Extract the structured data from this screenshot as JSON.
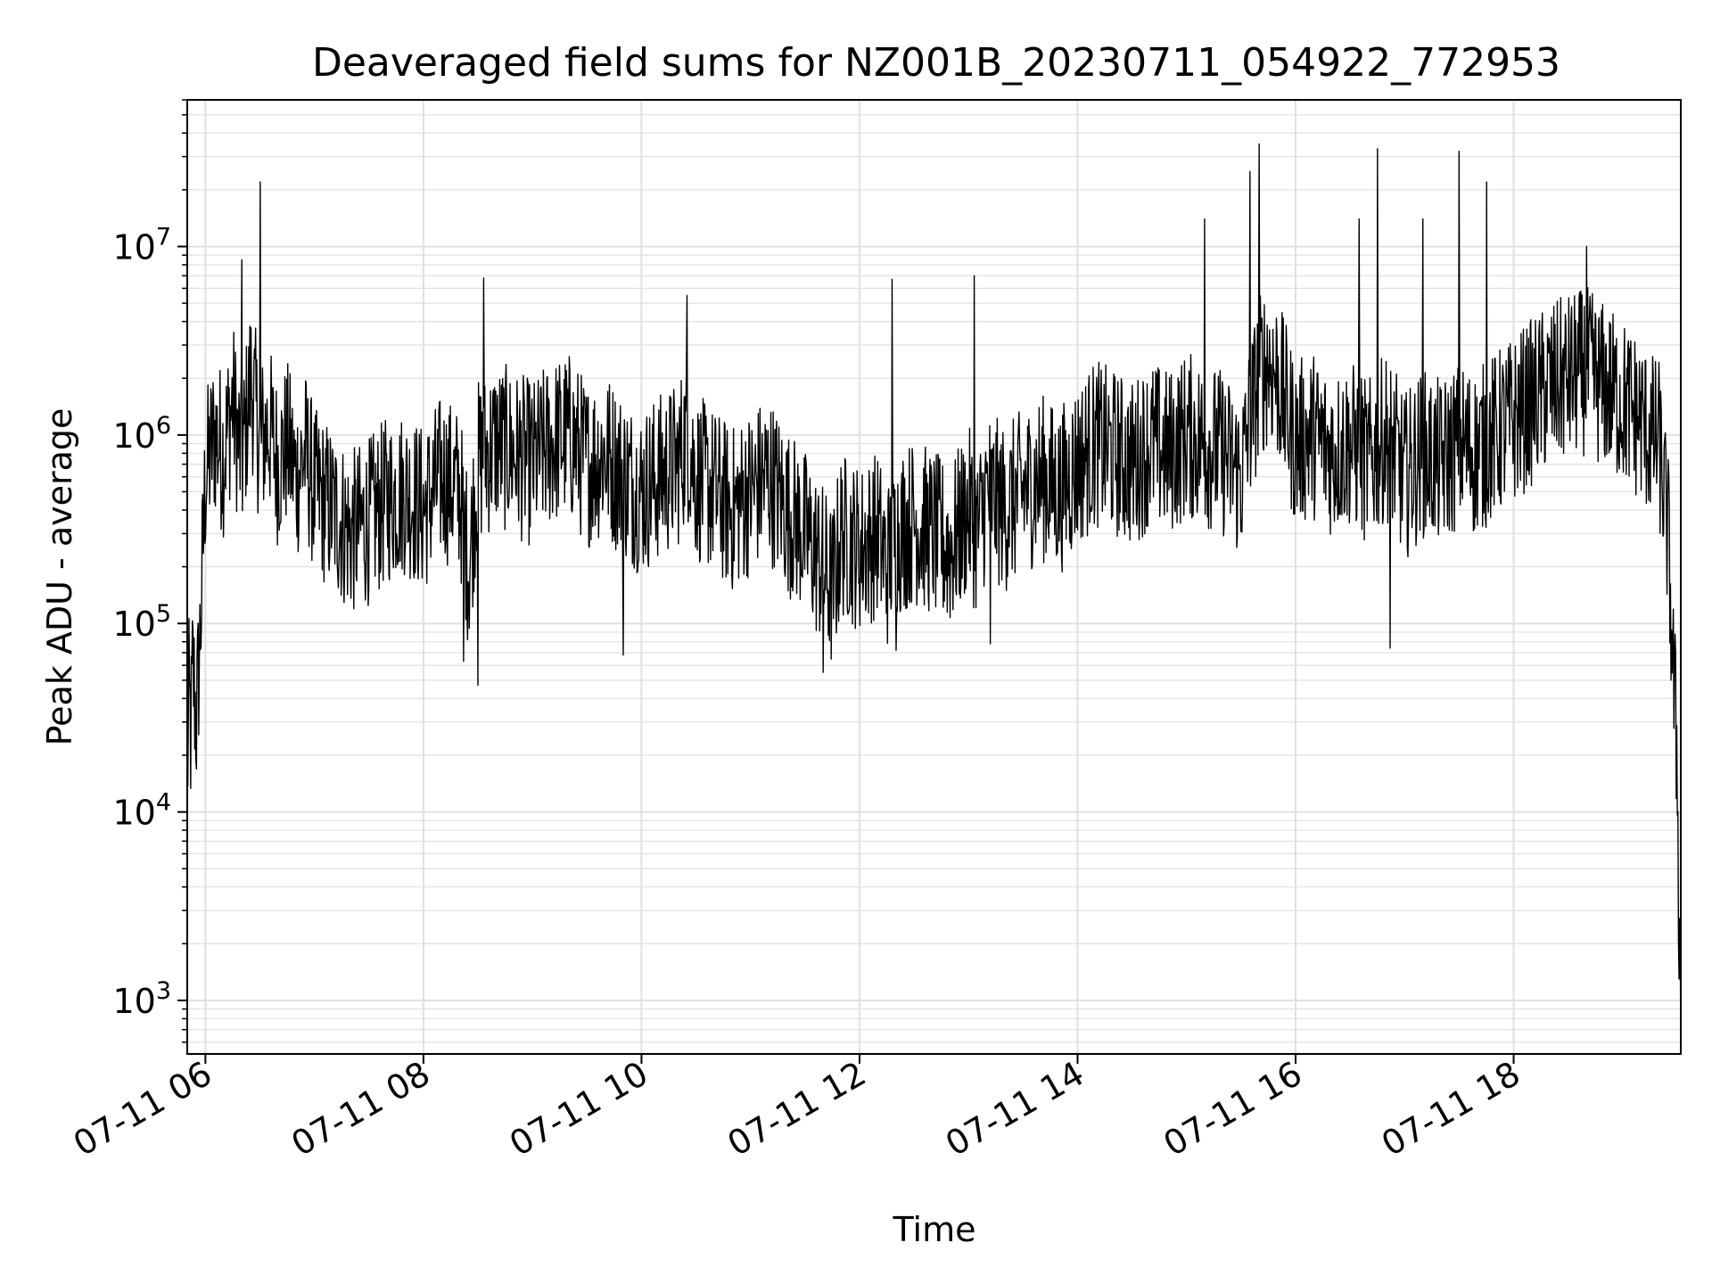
{
  "chart_data": {
    "type": "line",
    "title": "Deaveraged field sums for NZ001B_20230711_054922_772953",
    "xlabel": "Time",
    "ylabel": "Peak ADU - average",
    "x_scale": "time",
    "y_scale": "log",
    "xlim": [
      "2023-07-11 05:50",
      "2023-07-11 19:32"
    ],
    "ylim": [
      520,
      60000000
    ],
    "grid": true,
    "line_color": "#000000",
    "grid_color": "#e0e0e0",
    "x_ticks": [
      {
        "value": "2023-07-11 06:00",
        "label": "07-11 06"
      },
      {
        "value": "2023-07-11 08:00",
        "label": "07-11 08"
      },
      {
        "value": "2023-07-11 10:00",
        "label": "07-11 10"
      },
      {
        "value": "2023-07-11 12:00",
        "label": "07-11 12"
      },
      {
        "value": "2023-07-11 14:00",
        "label": "07-11 14"
      },
      {
        "value": "2023-07-11 16:00",
        "label": "07-11 16"
      },
      {
        "value": "2023-07-11 18:00",
        "label": "07-11 18"
      }
    ],
    "y_ticks": [
      {
        "value": 1000,
        "base": "10",
        "exp": "3"
      },
      {
        "value": 10000,
        "base": "10",
        "exp": "4"
      },
      {
        "value": 100000,
        "base": "10",
        "exp": "5"
      },
      {
        "value": 1000000,
        "base": "10",
        "exp": "6"
      },
      {
        "value": 10000000,
        "base": "10",
        "exp": "7"
      }
    ],
    "series": [
      {
        "x": [
          "2023-07-11 05:50",
          "2023-07-11 05:51",
          "2023-07-11 05:52",
          "2023-07-11 05:53",
          "2023-07-11 05:55",
          "2023-07-11 05:57",
          "2023-07-11 06:00",
          "2023-07-11 06:05",
          "2023-07-11 06:10",
          "2023-07-11 06:15",
          "2023-07-11 06:20",
          "2023-07-11 06:25",
          "2023-07-11 06:30",
          "2023-07-11 06:35",
          "2023-07-11 06:40",
          "2023-07-11 06:45",
          "2023-07-11 06:50",
          "2023-07-11 06:55",
          "2023-07-11 07:00",
          "2023-07-11 07:10",
          "2023-07-11 07:20",
          "2023-07-11 07:30",
          "2023-07-11 07:40",
          "2023-07-11 07:50",
          "2023-07-11 08:00",
          "2023-07-11 08:10",
          "2023-07-11 08:20",
          "2023-07-11 08:25",
          "2023-07-11 08:30",
          "2023-07-11 08:35",
          "2023-07-11 08:40",
          "2023-07-11 08:50",
          "2023-07-11 09:00",
          "2023-07-11 09:10",
          "2023-07-11 09:20",
          "2023-07-11 09:30",
          "2023-07-11 09:40",
          "2023-07-11 09:50",
          "2023-07-11 10:00",
          "2023-07-11 10:10",
          "2023-07-11 10:20",
          "2023-07-11 10:25",
          "2023-07-11 10:30",
          "2023-07-11 10:40",
          "2023-07-11 10:50",
          "2023-07-11 11:00",
          "2023-07-11 11:10",
          "2023-07-11 11:20",
          "2023-07-11 11:30",
          "2023-07-11 11:40",
          "2023-07-11 11:45",
          "2023-07-11 11:50",
          "2023-07-11 12:00",
          "2023-07-11 12:10",
          "2023-07-11 12:15",
          "2023-07-11 12:20",
          "2023-07-11 12:30",
          "2023-07-11 12:40",
          "2023-07-11 12:50",
          "2023-07-11 13:00",
          "2023-07-11 13:05",
          "2023-07-11 13:10",
          "2023-07-11 13:20",
          "2023-07-11 13:30",
          "2023-07-11 13:40",
          "2023-07-11 13:50",
          "2023-07-11 14:00",
          "2023-07-11 14:10",
          "2023-07-11 14:20",
          "2023-07-11 14:30",
          "2023-07-11 14:40",
          "2023-07-11 14:50",
          "2023-07-11 15:00",
          "2023-07-11 15:10",
          "2023-07-11 15:20",
          "2023-07-11 15:30",
          "2023-07-11 15:35",
          "2023-07-11 15:40",
          "2023-07-11 15:45",
          "2023-07-11 15:50",
          "2023-07-11 16:00",
          "2023-07-11 16:10",
          "2023-07-11 16:20",
          "2023-07-11 16:30",
          "2023-07-11 16:40",
          "2023-07-11 16:50",
          "2023-07-11 17:00",
          "2023-07-11 17:10",
          "2023-07-11 17:20",
          "2023-07-11 17:30",
          "2023-07-11 17:40",
          "2023-07-11 17:50",
          "2023-07-11 18:00",
          "2023-07-11 18:10",
          "2023-07-11 18:20",
          "2023-07-11 18:30",
          "2023-07-11 18:40",
          "2023-07-11 18:50",
          "2023-07-11 19:00",
          "2023-07-11 19:10",
          "2023-07-11 19:15",
          "2023-07-11 19:20",
          "2023-07-11 19:25",
          "2023-07-11 19:28",
          "2023-07-11 19:30",
          "2023-07-11 19:31",
          "2023-07-11 19:32"
        ],
        "y": [
          15000,
          40000,
          25000,
          60000,
          30000,
          80000,
          600000,
          1000000,
          800000,
          1500000,
          700000,
          2000000,
          900000,
          1100000,
          700000,
          900000,
          600000,
          800000,
          500000,
          400000,
          300000,
          350000,
          450000,
          500000,
          400000,
          600000,
          500000,
          200000,
          700000,
          800000,
          900000,
          800000,
          700000,
          900000,
          1000000,
          700000,
          800000,
          600000,
          500000,
          600000,
          700000,
          1000000,
          600000,
          500000,
          400000,
          500000,
          600000,
          400000,
          300000,
          200000,
          150000,
          300000,
          250000,
          300000,
          200000,
          300000,
          350000,
          300000,
          250000,
          400000,
          300000,
          500000,
          400000,
          500000,
          600000,
          500000,
          700000,
          900000,
          800000,
          700000,
          900000,
          800000,
          1000000,
          900000,
          800000,
          600000,
          1200000,
          2000000,
          2500000,
          2000000,
          900000,
          1000000,
          800000,
          900000,
          700000,
          1000000,
          600000,
          800000,
          700000,
          900000,
          800000,
          1000000,
          1200000,
          1500000,
          1800000,
          2000000,
          2200000,
          1800000,
          1500000,
          1200000,
          1000000,
          900000,
          300000,
          50000,
          20000,
          3000,
          800
        ]
      }
    ],
    "spikes": [
      {
        "x": "2023-07-11 06:20",
        "y": 8500000
      },
      {
        "x": "2023-07-11 06:30",
        "y": 22000000
      },
      {
        "x": "2023-07-11 08:33",
        "y": 6800000
      },
      {
        "x": "2023-07-11 10:25",
        "y": 5500000
      },
      {
        "x": "2023-07-11 12:18",
        "y": 6700000
      },
      {
        "x": "2023-07-11 13:03",
        "y": 7000000
      },
      {
        "x": "2023-07-11 15:10",
        "y": 14000000
      },
      {
        "x": "2023-07-11 15:35",
        "y": 25000000
      },
      {
        "x": "2023-07-11 15:40",
        "y": 35000000
      },
      {
        "x": "2023-07-11 16:35",
        "y": 14000000
      },
      {
        "x": "2023-07-11 16:45",
        "y": 33000000
      },
      {
        "x": "2023-07-11 17:10",
        "y": 14000000
      },
      {
        "x": "2023-07-11 17:30",
        "y": 32000000
      },
      {
        "x": "2023-07-11 17:45",
        "y": 22000000
      },
      {
        "x": "2023-07-11 18:40",
        "y": 10000000
      }
    ],
    "dips": [
      {
        "x": "2023-07-11 08:22",
        "y": 63000
      },
      {
        "x": "2023-07-11 08:30",
        "y": 47000
      },
      {
        "x": "2023-07-11 09:50",
        "y": 68000
      },
      {
        "x": "2023-07-11 11:40",
        "y": 55000
      },
      {
        "x": "2023-07-11 12:20",
        "y": 72000
      },
      {
        "x": "2023-07-11 13:12",
        "y": 78000
      },
      {
        "x": "2023-07-11 16:52",
        "y": 74000
      }
    ]
  }
}
